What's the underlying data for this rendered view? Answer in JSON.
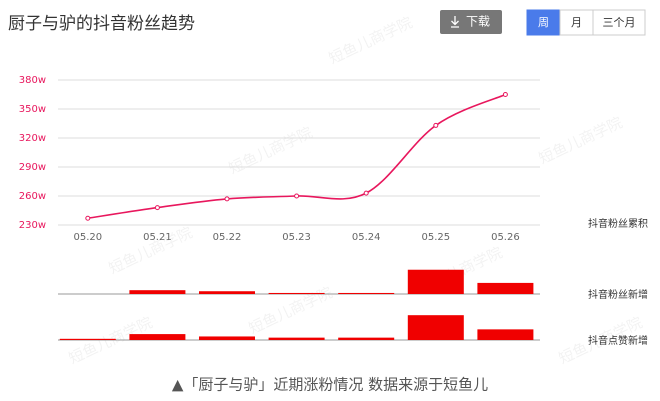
{
  "header": {
    "title": "厨子与驴的抖音粉丝趋势",
    "download": "下载",
    "tabs": [
      "周",
      "月",
      "三个月"
    ],
    "active_tab": 0
  },
  "watermark": "短鱼儿商学院",
  "chart_data": [
    {
      "type": "line",
      "label": "抖音粉丝累积",
      "color": "#e8175d",
      "categories": [
        "05.20",
        "05.21",
        "05.22",
        "05.23",
        "05.24",
        "05.25",
        "05.26"
      ],
      "values": [
        237,
        248,
        257,
        260,
        263,
        333,
        365
      ],
      "ylim": [
        230,
        380
      ],
      "yticks": [
        {
          "value": 230,
          "label": "230w"
        },
        {
          "value": 260,
          "label": "260w"
        },
        {
          "value": 290,
          "label": "290w"
        },
        {
          "value": 320,
          "label": "320w"
        },
        {
          "value": 350,
          "label": "350w"
        },
        {
          "value": 380,
          "label": "380w"
        }
      ],
      "grid": true
    },
    {
      "type": "bar",
      "label": "抖音粉丝新增",
      "color": "#f00000",
      "values": [
        0,
        11,
        8,
        3,
        3,
        70,
        32
      ],
      "ylim": [
        0,
        75
      ]
    },
    {
      "type": "bar",
      "label": "抖音点赞新增",
      "color": "#f00000",
      "values": [
        1,
        5,
        3,
        2,
        2,
        21,
        9
      ],
      "ylim": [
        0,
        22
      ]
    }
  ],
  "caption": "▲「厨子与驴」近期涨粉情况 数据来源于短鱼儿"
}
